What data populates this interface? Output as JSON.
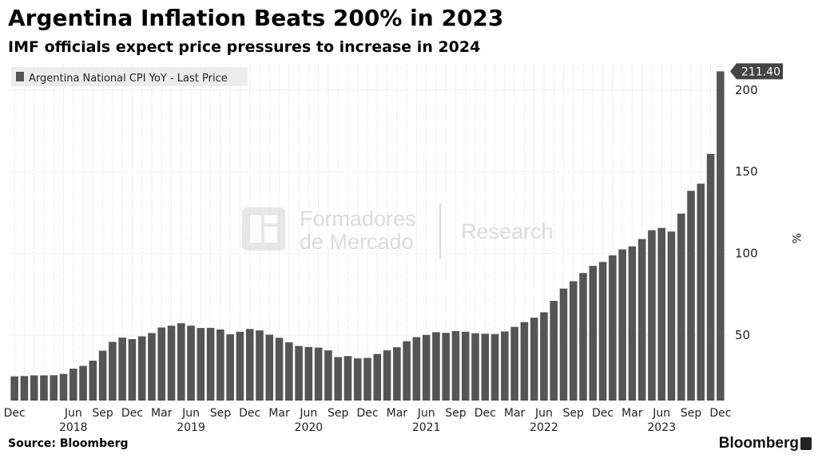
{
  "header": {
    "title": "Argentina Inflation Beats 200% in 2023",
    "subtitle": "IMF officials expect price pressures to increase in 2024"
  },
  "footer": {
    "source": "Source: Bloomberg",
    "brand": "Bloomberg"
  },
  "watermark": {
    "line1": "Formadores",
    "line2": "de Mercado",
    "word": "Research"
  },
  "colors": {
    "bar": "#555555",
    "grid": "#dcdcdc",
    "last_value_tag": "#444444",
    "legend_bg": "#ececec"
  },
  "chart_data": {
    "type": "bar",
    "legend": "Argentina National CPI YoY - Last Price",
    "legend_position": "top-left",
    "ylabel": "%",
    "ylim": [
      10,
      216
    ],
    "yticks": [
      50,
      100,
      150,
      200
    ],
    "grid": true,
    "last_value_label": "211.40",
    "x_tick_labels": [
      {
        "index": 0,
        "label": "Dec"
      },
      {
        "index": 6,
        "label": "Jun"
      },
      {
        "index": 9,
        "label": "Sep"
      },
      {
        "index": 12,
        "label": "Dec"
      },
      {
        "index": 15,
        "label": "Mar"
      },
      {
        "index": 18,
        "label": "Jun"
      },
      {
        "index": 21,
        "label": "Sep"
      },
      {
        "index": 24,
        "label": "Dec"
      },
      {
        "index": 27,
        "label": "Mar"
      },
      {
        "index": 30,
        "label": "Jun"
      },
      {
        "index": 33,
        "label": "Sep"
      },
      {
        "index": 36,
        "label": "Dec"
      },
      {
        "index": 39,
        "label": "Mar"
      },
      {
        "index": 42,
        "label": "Jun"
      },
      {
        "index": 45,
        "label": "Sep"
      },
      {
        "index": 48,
        "label": "Dec"
      },
      {
        "index": 51,
        "label": "Mar"
      },
      {
        "index": 54,
        "label": "Jun"
      },
      {
        "index": 57,
        "label": "Sep"
      },
      {
        "index": 60,
        "label": "Dec"
      },
      {
        "index": 63,
        "label": "Mar"
      },
      {
        "index": 66,
        "label": "Jun"
      },
      {
        "index": 69,
        "label": "Sep"
      },
      {
        "index": 72,
        "label": "Dec"
      }
    ],
    "year_labels": [
      {
        "index": 6,
        "label": "2018"
      },
      {
        "index": 18,
        "label": "2019"
      },
      {
        "index": 30,
        "label": "2020"
      },
      {
        "index": 42,
        "label": "2021"
      },
      {
        "index": 54,
        "label": "2022"
      },
      {
        "index": 66,
        "label": "2023"
      }
    ],
    "categories": [
      "Dec 2017",
      "Jan 2018",
      "Feb 2018",
      "Mar 2018",
      "Apr 2018",
      "May 2018",
      "Jun 2018",
      "Jul 2018",
      "Aug 2018",
      "Sep 2018",
      "Oct 2018",
      "Nov 2018",
      "Dec 2018",
      "Jan 2019",
      "Feb 2019",
      "Mar 2019",
      "Apr 2019",
      "May 2019",
      "Jun 2019",
      "Jul 2019",
      "Aug 2019",
      "Sep 2019",
      "Oct 2019",
      "Nov 2019",
      "Dec 2019",
      "Jan 2020",
      "Feb 2020",
      "Mar 2020",
      "Apr 2020",
      "May 2020",
      "Jun 2020",
      "Jul 2020",
      "Aug 2020",
      "Sep 2020",
      "Oct 2020",
      "Nov 2020",
      "Dec 2020",
      "Jan 2021",
      "Feb 2021",
      "Mar 2021",
      "Apr 2021",
      "May 2021",
      "Jun 2021",
      "Jul 2021",
      "Aug 2021",
      "Sep 2021",
      "Oct 2021",
      "Nov 2021",
      "Dec 2021",
      "Jan 2022",
      "Feb 2022",
      "Mar 2022",
      "Apr 2022",
      "May 2022",
      "Jun 2022",
      "Jul 2022",
      "Aug 2022",
      "Sep 2022",
      "Oct 2022",
      "Nov 2022",
      "Dec 2022",
      "Jan 2023",
      "Feb 2023",
      "Mar 2023",
      "Apr 2023",
      "May 2023",
      "Jun 2023",
      "Jul 2023",
      "Aug 2023",
      "Sep 2023",
      "Oct 2023",
      "Nov 2023",
      "Dec 2023"
    ],
    "values": [
      24.8,
      25.0,
      25.4,
      25.4,
      25.5,
      26.3,
      29.5,
      31.2,
      34.4,
      40.5,
      45.9,
      48.5,
      47.6,
      49.3,
      51.3,
      54.7,
      55.8,
      57.3,
      55.8,
      54.4,
      54.5,
      53.5,
      50.5,
      52.1,
      53.8,
      52.9,
      50.3,
      48.4,
      45.6,
      43.4,
      42.8,
      42.4,
      40.7,
      36.6,
      37.2,
      35.8,
      36.1,
      38.5,
      40.7,
      42.6,
      46.3,
      48.8,
      50.2,
      51.8,
      51.4,
      52.5,
      52.1,
      51.2,
      50.9,
      50.7,
      52.3,
      55.1,
      58.0,
      60.7,
      64.0,
      71.0,
      78.5,
      83.0,
      88.0,
      92.4,
      94.8,
      98.8,
      102.5,
      104.3,
      108.8,
      114.2,
      115.6,
      113.4,
      124.4,
      138.3,
      142.7,
      160.9,
      211.4
    ]
  }
}
